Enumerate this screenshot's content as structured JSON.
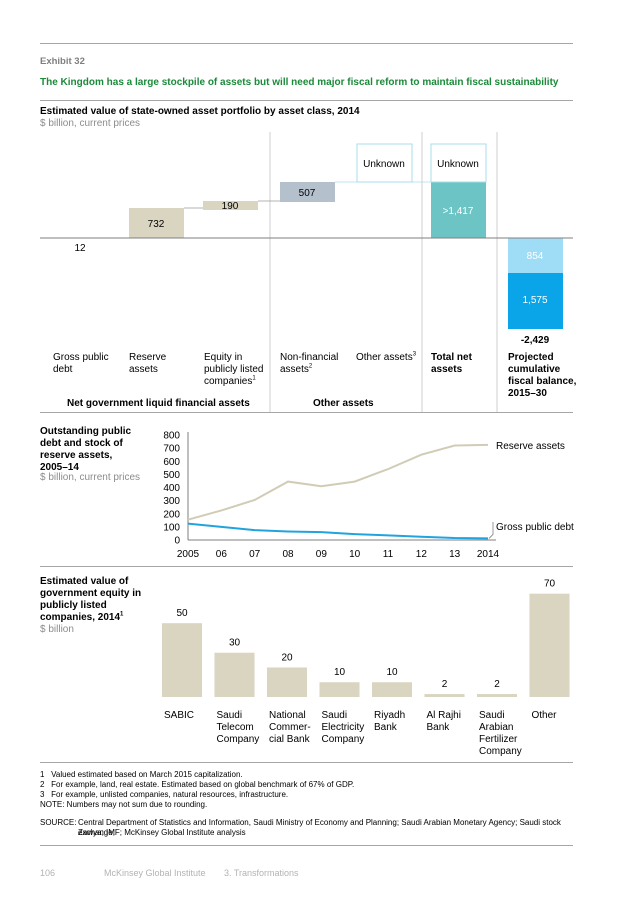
{
  "exhibit_label": "Exhibit 32",
  "headline": "The Kingdom has a large stockpile of assets but will need major fiscal reform to maintain fiscal sustainability",
  "colors": {
    "beige": "#d9d5c1",
    "gray_blue": "#b4c1cc",
    "teal": "#6cc4c4",
    "light_blue": "#9fdcf5",
    "blue": "#0aa4e8",
    "line_beige": "#d0ccb5",
    "line_blue": "#21a3de",
    "headline_green": "#1b8a3a"
  },
  "section1": {
    "title": "Estimated value of state-owned asset portfolio by asset class, 2014",
    "unit": "$ billion, current prices",
    "unknown_1": "Unknown",
    "unknown_2": "Unknown",
    "group_1": "Net government liquid financial assets",
    "group_2": "Other assets",
    "labels": {
      "gross_debt": "Gross public debt",
      "reserve": "Reserve assets",
      "equity": "Equity in publicly listed companies",
      "nonfin": "Non-financial assets",
      "other": "Other assets",
      "total": "Total net assets",
      "projected": "Projected cumulative fiscal balance, 2015–30"
    },
    "footnote_marks": {
      "equity": "1",
      "nonfin": "2",
      "other": "3"
    }
  },
  "section2": {
    "title": "Outstanding public debt and stock of reserve assets, 2005–14",
    "unit": "$ billion, current prices"
  },
  "section3": {
    "title": "Estimated value of government equity in publicly listed companies, 2014",
    "title_mark": "1",
    "unit": "$ billion"
  },
  "chart_data": [
    {
      "type": "bar",
      "subtype": "waterfall",
      "categories": [
        "Gross public debt",
        "Reserve assets",
        "Equity in publicly listed companies",
        "Non-financial assets",
        "Other assets",
        "Total net assets",
        "Projected cumulative fiscal balance, 2015–30"
      ],
      "values": [
        12,
        732,
        190,
        507,
        null,
        1417,
        -2429
      ],
      "value_labels": [
        "12",
        "732",
        "190",
        "507",
        "",
        ">1,417",
        "-2,429"
      ],
      "projected_components": [
        {
          "label": "854",
          "value": -854
        },
        {
          "label": "1,575",
          "value": -1575
        }
      ],
      "unknown_markers": [
        "Unknown",
        "Unknown"
      ]
    },
    {
      "type": "line",
      "x": [
        2005,
        2006,
        2007,
        2008,
        2009,
        2010,
        2011,
        2012,
        2013,
        2014
      ],
      "x_tick_labels": [
        "2005",
        "06",
        "07",
        "08",
        "09",
        "10",
        "11",
        "12",
        "13",
        "2014"
      ],
      "series": [
        {
          "name": "Reserve assets",
          "values": [
            155,
            225,
            305,
            445,
            410,
            445,
            540,
            650,
            720,
            725
          ]
        },
        {
          "name": "Gross public debt",
          "values": [
            125,
            100,
            75,
            65,
            60,
            45,
            35,
            25,
            15,
            12
          ]
        }
      ],
      "ylim": [
        0,
        800
      ],
      "y_ticks": [
        0,
        100,
        200,
        300,
        400,
        500,
        600,
        700,
        800
      ]
    },
    {
      "type": "bar",
      "categories": [
        "SABIC",
        "Saudi Telecom Company",
        "National Commer- cial Bank",
        "Saudi Electricity Company",
        "Riyadh Bank",
        "Al Rajhi Bank",
        "Saudi Arabian Fertilizer Company",
        "Other"
      ],
      "category_lines": [
        [
          "SABIC"
        ],
        [
          "Saudi",
          "Telecom",
          "Company"
        ],
        [
          "National",
          "Commer-",
          "cial Bank"
        ],
        [
          "Saudi",
          "Electricity",
          "Company"
        ],
        [
          "Riyadh",
          "Bank"
        ],
        [
          "Al Rajhi",
          "Bank"
        ],
        [
          "Saudi",
          "Arabian",
          "Fertilizer",
          "Company"
        ],
        [
          "Other"
        ]
      ],
      "values": [
        50,
        30,
        20,
        10,
        10,
        2,
        2,
        70
      ],
      "value_labels": [
        "50",
        "30",
        "20",
        "10",
        "10",
        "2",
        "2",
        "70"
      ]
    }
  ],
  "footnotes": [
    {
      "num": "1",
      "text": "Valued estimated based on March 2015 capitalization."
    },
    {
      "num": "2",
      "text": "For example, land, real estate. Estimated based on global benchmark of 67% of GDP."
    },
    {
      "num": "3",
      "text": "For example, unlisted companies, natural resources, infrastructure."
    }
  ],
  "note": "NOTE: Numbers may not sum due to rounding.",
  "source_label": "SOURCE:",
  "source_text_1": "Central Department of Statistics and Information, Saudi Ministry of Economy and Planning; Saudi Arabian Monetary Agency; Saudi stock exchange;",
  "source_text_2": "Zawya; IMF; McKinsey Global Institute analysis",
  "footer": {
    "page": "106",
    "org": "McKinsey Global Institute",
    "chapter": "3. Transformations"
  }
}
